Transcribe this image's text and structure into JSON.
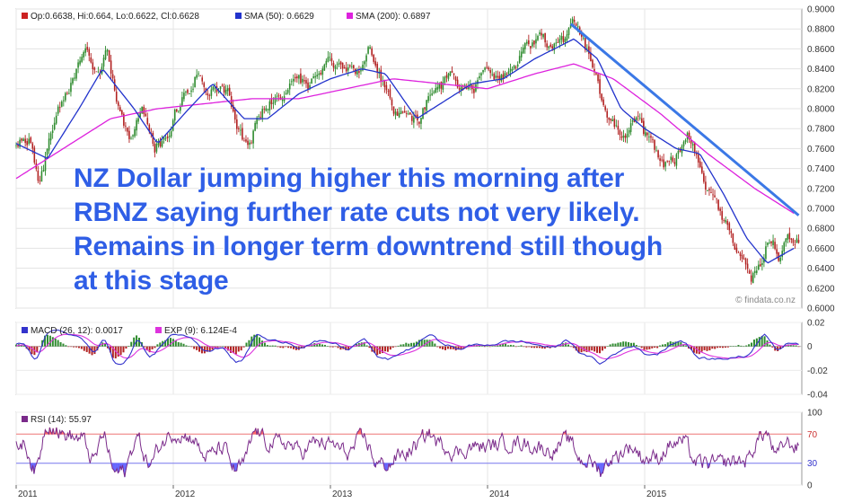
{
  "colors": {
    "up_candle": "#2e8b2e",
    "down_candle": "#b22222",
    "sma50": "#2233cc",
    "sma200": "#dd22dd",
    "trendline": "#3b78e6",
    "macd_line": "#3333cc",
    "macd_signal": "#dd33dd",
    "rsi_line": "#7a2a8a",
    "rsi_over": "#ff6666",
    "rsi_under": "#6666ff",
    "annotation": "#2f5ee6"
  },
  "annotation": {
    "line1": "NZ Dollar jumping higher this morning after",
    "line2": "RBNZ saying further rate cuts not very likely.",
    "line3": "Remains in longer term downtrend still though",
    "line4": "at this stage"
  },
  "watermark": "© findata.co.nz",
  "chart_data": [
    {
      "type": "candlestick",
      "panel": "price",
      "legend": [
        {
          "label": "Op:0.6638, Hi:0.664, Lo:0.6622, Cl:0.6628",
          "color": "#cc2222"
        },
        {
          "label": "SMA (50): 0.6629",
          "color": "#2233cc"
        },
        {
          "label": "SMA (200): 0.6897",
          "color": "#dd22dd"
        }
      ],
      "ylim": [
        0.6,
        0.9
      ],
      "yticks": [
        "0.9000",
        "0.8800",
        "0.8600",
        "0.8400",
        "0.8200",
        "0.8000",
        "0.7800",
        "0.7600",
        "0.7400",
        "0.7200",
        "0.7000",
        "0.6800",
        "0.6600",
        "0.6400",
        "0.6200",
        "0.6000"
      ],
      "price_path": [
        [
          2011.0,
          0.758
        ],
        [
          2011.08,
          0.77
        ],
        [
          2011.15,
          0.725
        ],
        [
          2011.25,
          0.79
        ],
        [
          2011.35,
          0.825
        ],
        [
          2011.45,
          0.85
        ],
        [
          2011.52,
          0.825
        ],
        [
          2011.58,
          0.855
        ],
        [
          2011.65,
          0.81
        ],
        [
          2011.72,
          0.77
        ],
        [
          2011.8,
          0.795
        ],
        [
          2011.88,
          0.76
        ],
        [
          2011.95,
          0.77
        ],
        [
          2012.05,
          0.81
        ],
        [
          2012.15,
          0.84
        ],
        [
          2012.25,
          0.82
        ],
        [
          2012.35,
          0.82
        ],
        [
          2012.42,
          0.78
        ],
        [
          2012.48,
          0.76
        ],
        [
          2012.55,
          0.795
        ],
        [
          2012.65,
          0.81
        ],
        [
          2012.75,
          0.825
        ],
        [
          2012.85,
          0.82
        ],
        [
          2012.95,
          0.835
        ],
        [
          2013.05,
          0.845
        ],
        [
          2013.15,
          0.835
        ],
        [
          2013.25,
          0.86
        ],
        [
          2013.3,
          0.84
        ],
        [
          2013.4,
          0.8
        ],
        [
          2013.5,
          0.785
        ],
        [
          2013.58,
          0.79
        ],
        [
          2013.65,
          0.82
        ],
        [
          2013.75,
          0.83
        ],
        [
          2013.85,
          0.82
        ],
        [
          2013.95,
          0.825
        ],
        [
          2014.05,
          0.83
        ],
        [
          2014.15,
          0.845
        ],
        [
          2014.25,
          0.86
        ],
        [
          2014.35,
          0.865
        ],
        [
          2014.45,
          0.86
        ],
        [
          2014.55,
          0.88
        ],
        [
          2014.6,
          0.865
        ],
        [
          2014.68,
          0.84
        ],
        [
          2014.75,
          0.8
        ],
        [
          2014.85,
          0.78
        ],
        [
          2014.95,
          0.785
        ],
        [
          2015.05,
          0.76
        ],
        [
          2015.12,
          0.745
        ],
        [
          2015.2,
          0.755
        ],
        [
          2015.28,
          0.77
        ],
        [
          2015.36,
          0.74
        ],
        [
          2015.44,
          0.71
        ],
        [
          2015.52,
          0.68
        ],
        [
          2015.6,
          0.655
        ],
        [
          2015.68,
          0.63
        ],
        [
          2015.74,
          0.645
        ],
        [
          2015.8,
          0.672
        ],
        [
          2015.86,
          0.655
        ],
        [
          2015.9,
          0.665
        ],
        [
          2015.95,
          0.67
        ]
      ],
      "sma50_path": [
        [
          2011.0,
          0.765
        ],
        [
          2011.2,
          0.75
        ],
        [
          2011.4,
          0.8
        ],
        [
          2011.55,
          0.84
        ],
        [
          2011.75,
          0.8
        ],
        [
          2011.9,
          0.765
        ],
        [
          2012.1,
          0.8
        ],
        [
          2012.25,
          0.825
        ],
        [
          2012.45,
          0.79
        ],
        [
          2012.6,
          0.79
        ],
        [
          2012.8,
          0.815
        ],
        [
          2013.0,
          0.83
        ],
        [
          2013.2,
          0.84
        ],
        [
          2013.35,
          0.835
        ],
        [
          2013.55,
          0.79
        ],
        [
          2013.7,
          0.805
        ],
        [
          2013.9,
          0.825
        ],
        [
          2014.1,
          0.83
        ],
        [
          2014.3,
          0.85
        ],
        [
          2014.55,
          0.87
        ],
        [
          2014.7,
          0.85
        ],
        [
          2014.85,
          0.8
        ],
        [
          2015.0,
          0.78
        ],
        [
          2015.2,
          0.76
        ],
        [
          2015.35,
          0.755
        ],
        [
          2015.5,
          0.715
        ],
        [
          2015.65,
          0.67
        ],
        [
          2015.78,
          0.645
        ],
        [
          2015.95,
          0.66
        ]
      ],
      "sma200_path": [
        [
          2011.0,
          0.73
        ],
        [
          2011.3,
          0.76
        ],
        [
          2011.6,
          0.79
        ],
        [
          2011.9,
          0.8
        ],
        [
          2012.2,
          0.805
        ],
        [
          2012.5,
          0.81
        ],
        [
          2012.8,
          0.81
        ],
        [
          2013.1,
          0.82
        ],
        [
          2013.4,
          0.83
        ],
        [
          2013.7,
          0.825
        ],
        [
          2014.0,
          0.82
        ],
        [
          2014.3,
          0.835
        ],
        [
          2014.55,
          0.845
        ],
        [
          2014.8,
          0.83
        ],
        [
          2015.1,
          0.795
        ],
        [
          2015.4,
          0.755
        ],
        [
          2015.7,
          0.72
        ],
        [
          2015.95,
          0.695
        ]
      ],
      "trendline": [
        [
          2014.53,
          0.885
        ],
        [
          2015.98,
          0.693
        ]
      ]
    },
    {
      "type": "line",
      "panel": "macd",
      "legend": [
        {
          "label": "MACD (26, 12): 0.0017",
          "color": "#3333cc"
        },
        {
          "label": "EXP (9): 6.124E-4",
          "color": "#dd33dd"
        }
      ],
      "ylim": [
        -0.04,
        0.02
      ],
      "yticks": [
        "0.02",
        "0",
        "-0.02",
        "-0.04"
      ]
    },
    {
      "type": "line",
      "panel": "rsi",
      "legend": [
        {
          "label": "RSI (14): 55.97",
          "color": "#7a2a8a"
        }
      ],
      "ylim": [
        0,
        100
      ],
      "yticks": [
        "100",
        "70",
        "30",
        "0"
      ],
      "levels": [
        70,
        30
      ]
    }
  ],
  "x_axis": {
    "range": [
      2011.0,
      2016.0
    ],
    "ticks": [
      "2011",
      "2012",
      "2013",
      "2014",
      "2015"
    ]
  }
}
